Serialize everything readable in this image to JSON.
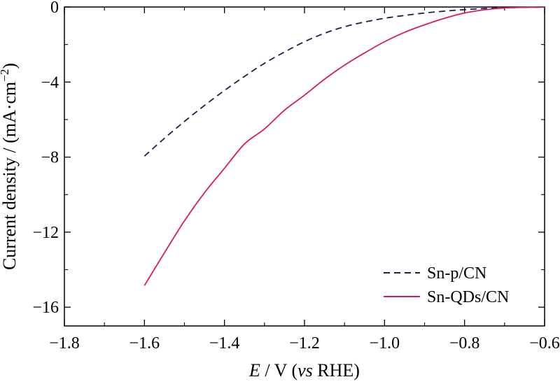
{
  "chart_data": {
    "type": "line",
    "title": "",
    "xlabel": {
      "italic": "E",
      "mid": " / V (",
      "italic2": "vs",
      "tail": " RHE)"
    },
    "ylabel": {
      "text": "Current density / (mA·cm",
      "sup": "−2",
      "close": ")"
    },
    "xlim": [
      -1.8,
      -0.6
    ],
    "ylim": [
      -17,
      0
    ],
    "xticks": [
      -1.8,
      -1.6,
      -1.4,
      -1.2,
      -1.0,
      -0.8,
      -0.6
    ],
    "xtick_labels": [
      "−1.8",
      "−1.6",
      "−1.4",
      "−1.2",
      "−1.0",
      "−0.8",
      "−0.6"
    ],
    "yticks": [
      0,
      -4,
      -8,
      -12,
      -16
    ],
    "ytick_labels": [
      "0",
      "−4",
      "−8",
      "−12",
      "−16"
    ],
    "grid": false,
    "legend_position": "bottom-right",
    "series": [
      {
        "name": "Sn-p/CN",
        "style": "dashed",
        "color": "#1c1f4a",
        "x": [
          -1.6,
          -1.55,
          -1.5,
          -1.45,
          -1.4,
          -1.35,
          -1.3,
          -1.25,
          -1.2,
          -1.15,
          -1.1,
          -1.05,
          -1.0,
          -0.95,
          -0.9,
          -0.85,
          -0.8,
          -0.75,
          -0.7,
          -0.65,
          -0.6
        ],
        "y": [
          -7.95,
          -7.0,
          -6.1,
          -5.25,
          -4.45,
          -3.7,
          -3.0,
          -2.4,
          -1.85,
          -1.4,
          -1.05,
          -0.8,
          -0.6,
          -0.45,
          -0.32,
          -0.22,
          -0.14,
          -0.08,
          -0.04,
          -0.02,
          -0.01
        ]
      },
      {
        "name": "Sn-QDs/CN",
        "style": "solid",
        "color": "#d81b60",
        "x": [
          -1.6,
          -1.55,
          -1.5,
          -1.45,
          -1.4,
          -1.35,
          -1.3,
          -1.25,
          -1.2,
          -1.15,
          -1.1,
          -1.05,
          -1.0,
          -0.95,
          -0.9,
          -0.85,
          -0.8,
          -0.75,
          -0.7,
          -0.65,
          -0.6
        ],
        "y": [
          -14.85,
          -13.1,
          -11.4,
          -9.9,
          -8.6,
          -7.3,
          -6.5,
          -5.5,
          -4.7,
          -3.85,
          -3.1,
          -2.45,
          -1.85,
          -1.35,
          -0.95,
          -0.6,
          -0.32,
          -0.15,
          -0.05,
          -0.02,
          -0.01
        ]
      }
    ]
  }
}
